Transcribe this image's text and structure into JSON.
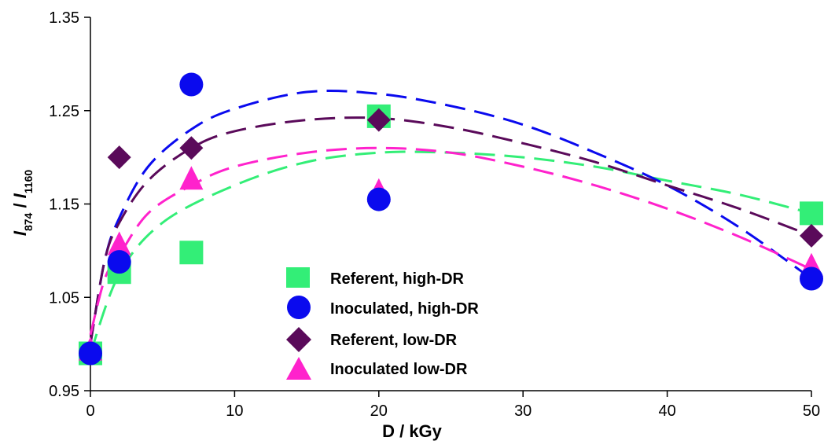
{
  "chart_data": {
    "type": "scatter",
    "title": "",
    "xlabel": "D / kGy",
    "ylabel": {
      "main": "I",
      "sub1": "874",
      "sep": " / ",
      "main2": "I",
      "sub2": "1160"
    },
    "xlim": [
      0,
      50
    ],
    "ylim": [
      0.95,
      1.35
    ],
    "xticks": [
      0,
      10,
      20,
      30,
      40,
      50
    ],
    "yticks": [
      0.95,
      1.05,
      1.15,
      1.25,
      1.35
    ],
    "xtick_labels": [
      "0",
      "10",
      "20",
      "30",
      "40",
      "50"
    ],
    "ytick_labels": [
      "0.95",
      "1.05",
      "1.15",
      "1.25",
      "1.35"
    ],
    "grid": false,
    "legend_position": "center",
    "series": [
      {
        "name": "Referent, high-DR",
        "marker": "square",
        "color": "#33ee77",
        "x": [
          0,
          2,
          7,
          20,
          50
        ],
        "y": [
          0.99,
          1.077,
          1.098,
          1.244,
          1.14
        ],
        "fit": [
          [
            0,
            0.99
          ],
          [
            2,
            1.075
          ],
          [
            5,
            1.13
          ],
          [
            10,
            1.17
          ],
          [
            15,
            1.195
          ],
          [
            20,
            1.205
          ],
          [
            25,
            1.205
          ],
          [
            30,
            1.2
          ],
          [
            35,
            1.19
          ],
          [
            40,
            1.175
          ],
          [
            45,
            1.16
          ],
          [
            50,
            1.14
          ]
        ]
      },
      {
        "name": "Inoculated, high-DR",
        "marker": "circle",
        "color": "#0a0aee",
        "x": [
          0,
          2,
          7,
          20,
          50
        ],
        "y": [
          0.99,
          1.088,
          1.278,
          1.155,
          1.07
        ],
        "fit": [
          [
            0,
            1.0
          ],
          [
            1,
            1.09
          ],
          [
            2,
            1.135
          ],
          [
            4,
            1.19
          ],
          [
            7,
            1.23
          ],
          [
            10,
            1.252
          ],
          [
            15,
            1.27
          ],
          [
            20,
            1.268
          ],
          [
            25,
            1.255
          ],
          [
            30,
            1.235
          ],
          [
            35,
            1.205
          ],
          [
            40,
            1.17
          ],
          [
            45,
            1.125
          ],
          [
            50,
            1.07
          ]
        ]
      },
      {
        "name": "Referent, low-DR",
        "marker": "diamond",
        "color": "#5a0a5a",
        "x": [
          0,
          2,
          7,
          20,
          50
        ],
        "y": [
          0.99,
          1.2,
          1.21,
          1.24,
          1.116
        ],
        "fit": [
          [
            0,
            1.0
          ],
          [
            1,
            1.09
          ],
          [
            2,
            1.13
          ],
          [
            4,
            1.175
          ],
          [
            7,
            1.21
          ],
          [
            10,
            1.228
          ],
          [
            15,
            1.24
          ],
          [
            20,
            1.242
          ],
          [
            25,
            1.232
          ],
          [
            30,
            1.215
          ],
          [
            35,
            1.195
          ],
          [
            40,
            1.17
          ],
          [
            45,
            1.145
          ],
          [
            50,
            1.116
          ]
        ]
      },
      {
        "name": "Inoculated low-DR",
        "marker": "triangle",
        "color": "#ff22cc",
        "x": [
          0,
          2,
          7,
          20,
          50
        ],
        "y": [
          0.995,
          1.108,
          1.178,
          1.165,
          1.085
        ],
        "fit": [
          [
            0,
            1.01
          ],
          [
            1,
            1.07
          ],
          [
            2,
            1.095
          ],
          [
            4,
            1.14
          ],
          [
            7,
            1.17
          ],
          [
            10,
            1.19
          ],
          [
            15,
            1.205
          ],
          [
            20,
            1.21
          ],
          [
            25,
            1.205
          ],
          [
            30,
            1.19
          ],
          [
            35,
            1.17
          ],
          [
            40,
            1.145
          ],
          [
            45,
            1.115
          ],
          [
            50,
            1.08
          ]
        ]
      }
    ]
  }
}
